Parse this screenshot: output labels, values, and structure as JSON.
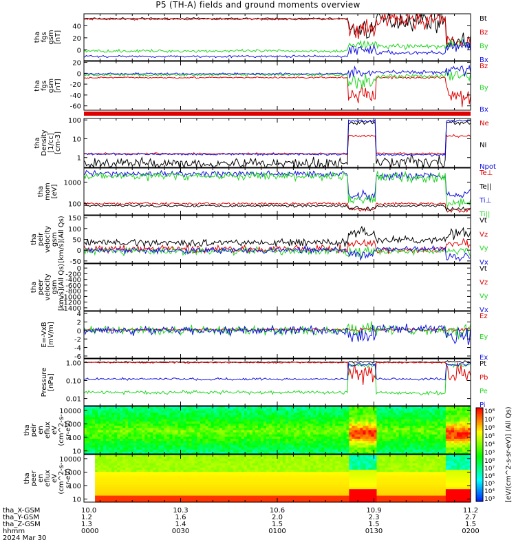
{
  "title": "P5 (TH-A) fields and ground moments overview",
  "colors": {
    "black": "#000000",
    "red": "#e00000",
    "green": "#22d622",
    "blue": "#1010e0",
    "frame": "#000000"
  },
  "chart_data": [
    {
      "type": "line",
      "ylabel": [
        "tha",
        "fgs",
        "gsm",
        "[nT]"
      ],
      "ylim": [
        -18,
        60
      ],
      "yticks": [
        "40",
        "20",
        "0"
      ],
      "ytick_values": [
        40,
        20,
        0
      ],
      "legend": [
        "Bt",
        "Bz",
        "By",
        "Bx"
      ],
      "series": [
        {
          "name": "Bt",
          "color": "black",
          "baseline": 52,
          "noise": 1.2,
          "disturbed": [
            [
              35,
              15
            ],
            [
              50,
              15
            ],
            [
              15,
              10
            ]
          ]
        },
        {
          "name": "Bz",
          "color": "red",
          "baseline": 51,
          "noise": 1.2,
          "disturbed": [
            [
              30,
              15
            ],
            [
              50,
              15
            ],
            [
              12,
              10
            ]
          ]
        },
        {
          "name": "By",
          "color": "green",
          "baseline": -2,
          "noise": 2,
          "disturbed": [
            [
              8,
              6
            ],
            [
              6,
              4
            ],
            [
              10,
              8
            ]
          ]
        },
        {
          "name": "Bx",
          "color": "blue",
          "baseline": -11,
          "noise": 1.5,
          "disturbed": [
            [
              0,
              8
            ],
            [
              -5,
              3
            ],
            [
              5,
              10
            ]
          ]
        }
      ]
    },
    {
      "type": "line",
      "ylabel": [
        "tha",
        "fgs",
        "gsm",
        "[nT]"
      ],
      "ylim": [
        -68,
        22
      ],
      "yticks": [
        "20",
        "0",
        "-20",
        "-40",
        "-60"
      ],
      "ytick_values": [
        20,
        0,
        -20,
        -40,
        -60
      ],
      "legend": [
        "Bz",
        "By",
        "Bx"
      ],
      "series": [
        {
          "name": "Bz",
          "color": "red",
          "baseline": -8,
          "noise": 1.2,
          "disturbed": [
            [
              -40,
              12
            ],
            [
              -8,
              2
            ],
            [
              -40,
              15
            ]
          ]
        },
        {
          "name": "By",
          "color": "green",
          "baseline": -3,
          "noise": 2,
          "disturbed": [
            [
              -15,
              12
            ],
            [
              -5,
              3
            ],
            [
              -5,
              10
            ]
          ]
        },
        {
          "name": "Bx",
          "color": "blue",
          "baseline": -1,
          "noise": 1.5,
          "disturbed": [
            [
              0,
              10
            ],
            [
              2,
              3
            ],
            [
              8,
              10
            ]
          ]
        }
      ]
    },
    {
      "type": "line",
      "ylabel": [
        "tha",
        "Density",
        "[1/cc]",
        "[cm-3]"
      ],
      "ylim": [
        0.3,
        120
      ],
      "log": true,
      "yticks": [
        "100",
        "10",
        "1"
      ],
      "ytick_values": [
        100,
        10,
        1
      ],
      "legend": [
        "Ne",
        "Ni",
        "Npot"
      ],
      "series": [
        {
          "name": "Ne",
          "color": "red",
          "baseline": 1.6,
          "noise": 0.04,
          "disturbed": [
            [
              14,
              0.05
            ],
            [
              1.6,
              0.05
            ],
            [
              14,
              0.05
            ]
          ]
        },
        {
          "name": "Ni",
          "color": "black",
          "baseline": 0.5,
          "noise": 0.25,
          "disturbed": [
            [
              70,
              0.1
            ],
            [
              0.6,
              0.3
            ],
            [
              70,
              0.1
            ]
          ]
        },
        {
          "name": "Npot",
          "color": "blue",
          "baseline": 1.5,
          "noise": 0.05,
          "disturbed": [
            [
              90,
              0.05
            ],
            [
              1.4,
              0.05
            ],
            [
              90,
              0.05
            ]
          ]
        }
      ]
    },
    {
      "type": "line",
      "ylabel": [
        "tha",
        "mom",
        "[eV]"
      ],
      "ylim": [
        30,
        4500
      ],
      "log": true,
      "yticks": [
        "1000",
        "100"
      ],
      "ytick_values": [
        1000,
        100
      ],
      "legend": [
        "Te⊥",
        "Te||",
        "Ti⊥",
        "Ti||"
      ],
      "series": [
        {
          "name": "Te⊥",
          "color": "red",
          "baseline": 100,
          "noise": 0.05,
          "disturbed": [
            [
              55,
              0.08
            ],
            [
              100,
              0.05
            ],
            [
              50,
              0.08
            ]
          ]
        },
        {
          "name": "Te||",
          "color": "black",
          "baseline": 80,
          "noise": 0.05,
          "disturbed": [
            [
              60,
              0.08
            ],
            [
              80,
              0.05
            ],
            [
              55,
              0.08
            ]
          ]
        },
        {
          "name": "Ti⊥",
          "color": "blue",
          "baseline": 2400,
          "noise": 0.12,
          "disturbed": [
            [
              250,
              0.2
            ],
            [
              2000,
              0.15
            ],
            [
              300,
              0.2
            ]
          ]
        },
        {
          "name": "Ti||",
          "color": "green",
          "baseline": 1900,
          "noise": 0.15,
          "disturbed": [
            [
              150,
              0.2
            ],
            [
              1700,
              0.2
            ],
            [
              100,
              0.2
            ]
          ]
        }
      ]
    },
    {
      "type": "line",
      "ylabel": [
        "tha",
        "peir",
        "velocity",
        "gsm",
        "[km/s](All Qs)"
      ],
      "ylim": [
        -60,
        160
      ],
      "yticks": [
        "150",
        "100",
        "50",
        "0",
        "-50"
      ],
      "ytick_values": [
        150,
        100,
        50,
        0,
        -50
      ],
      "legend": [
        "Vt",
        "Vz",
        "Vy",
        "Vx"
      ],
      "series": [
        {
          "name": "Vt",
          "color": "black",
          "baseline": 35,
          "noise": 14,
          "disturbed": [
            [
              80,
              25
            ],
            [
              45,
              15
            ],
            [
              80,
              25
            ]
          ]
        },
        {
          "name": "Vz",
          "color": "red",
          "baseline": 5,
          "noise": 14,
          "disturbed": [
            [
              30,
              15
            ],
            [
              0,
              12
            ],
            [
              30,
              15
            ]
          ]
        },
        {
          "name": "Vy",
          "color": "green",
          "baseline": -5,
          "noise": 14,
          "disturbed": [
            [
              -10,
              20
            ],
            [
              -5,
              12
            ],
            [
              -10,
              20
            ]
          ]
        },
        {
          "name": "Vx",
          "color": "blue",
          "baseline": 0,
          "noise": 12,
          "disturbed": [
            [
              -20,
              20
            ],
            [
              5,
              12
            ],
            [
              -30,
              20
            ]
          ]
        }
      ]
    },
    {
      "type": "line",
      "ylabel": [
        "tha",
        "peer",
        "velocity",
        "gsm",
        "[km/s](All Qs)"
      ],
      "ylim": [
        -1500,
        150
      ],
      "yticks": [
        "0",
        "-200",
        "-400",
        "-600",
        "-800",
        "-1000",
        "-1200",
        "-1400"
      ],
      "ytick_values": [
        0,
        -200,
        -400,
        -600,
        -800,
        -1000,
        -1200,
        -1400
      ],
      "legend": [
        "Vt",
        "Vz",
        "Vy",
        "Vx"
      ],
      "series": []
    },
    {
      "type": "line",
      "ylabel": [
        "E=-VxB",
        "[mV/m]"
      ],
      "ylim": [
        -6.5,
        4.5
      ],
      "yticks": [
        "4",
        "2",
        "0",
        "-2",
        "-4",
        "-6"
      ],
      "ytick_values": [
        4,
        2,
        0,
        -2,
        -4,
        -6
      ],
      "legend": [
        "Ez",
        "Ey",
        "Ex"
      ],
      "series": [
        {
          "name": "Ez",
          "color": "red",
          "baseline": 0.2,
          "noise": 0.25,
          "disturbed": [
            [
              0.2,
              0.4
            ],
            [
              0.2,
              0.25
            ],
            [
              0.2,
              0.4
            ]
          ]
        },
        {
          "name": "Ey",
          "color": "green",
          "baseline": 0,
          "noise": 0.9,
          "disturbed": [
            [
              0.5,
              1.5
            ],
            [
              0,
              0.9
            ],
            [
              0,
              1.5
            ]
          ]
        },
        {
          "name": "Ex",
          "color": "blue",
          "baseline": 0,
          "noise": 0.8,
          "disturbed": [
            [
              -1,
              1.8
            ],
            [
              0.5,
              0.9
            ],
            [
              -1,
              1.8
            ]
          ]
        }
      ]
    },
    {
      "type": "line",
      "ylabel": [
        "Pressure",
        "[nPa]"
      ],
      "ylim": [
        0.004,
        1.6
      ],
      "log": true,
      "yticks": [
        "1.00",
        "0.10",
        "0.01"
      ],
      "ytick_values": [
        1,
        0.1,
        0.01
      ],
      "legend": [
        "Pt",
        "Pb",
        "Pe",
        "Pi"
      ],
      "series": [
        {
          "name": "Pt",
          "color": "black",
          "baseline": 1.05,
          "noise": 0.03,
          "disturbed": [
            [
              1.1,
              0.05
            ],
            [
              1.05,
              0.03
            ],
            [
              1.1,
              0.05
            ]
          ]
        },
        {
          "name": "Pb",
          "color": "red",
          "baseline": 1.0,
          "noise": 0.03,
          "disturbed": [
            [
              0.25,
              0.5
            ],
            [
              1.0,
              0.03
            ],
            [
              0.25,
              0.5
            ]
          ]
        },
        {
          "name": "Pe",
          "color": "green",
          "baseline": 0.022,
          "noise": 0.08,
          "disturbed": [
            [
              0.7,
              0.1
            ],
            [
              0.02,
              0.08
            ],
            [
              0.7,
              0.1
            ]
          ]
        },
        {
          "name": "Pi",
          "color": "blue",
          "baseline": 0.12,
          "noise": 0.06,
          "disturbed": [
            [
              0.8,
              0.08
            ],
            [
              0.12,
              0.06
            ],
            [
              0.8,
              0.08
            ]
          ]
        }
      ]
    },
    {
      "type": "heatmap",
      "ylabel": [
        "tha",
        "peir",
        "en",
        "eflux",
        "eV",
        "(cm^2-s-",
        "sr-eV)"
      ],
      "ylim": [
        6,
        20000
      ],
      "log": true,
      "yticks": [
        "10000",
        "1000",
        "100",
        "10"
      ],
      "ytick_values": [
        10000,
        1000,
        100,
        10
      ]
    },
    {
      "type": "heatmap",
      "ylabel": [
        "tha",
        "peer",
        "en",
        "eflux",
        "eV",
        "(cm^2-s-",
        "sr-eV)"
      ],
      "ylim": [
        6,
        20000
      ],
      "log": true,
      "yticks": [
        "10000",
        "1000",
        "100",
        "10"
      ],
      "ytick_values": [
        10000,
        1000,
        100,
        10
      ]
    }
  ],
  "events": [
    [
      0.684,
      0.756
    ],
    [
      0.935,
      1.0
    ]
  ],
  "colorbar": {
    "label": "[eV/(cm^2-s-sr-eV)] (All Qs)",
    "ticks": [
      "10⁸",
      "10⁷",
      "10⁶",
      "10⁵",
      "10⁴",
      "10³"
    ],
    "ticks2": [
      "10⁸",
      "10⁷",
      "10⁶",
      "10⁵",
      "10⁴",
      "10³"
    ]
  },
  "x_axis": {
    "row_labels": [
      "tha_X-GSM",
      "tha_Y-GSM",
      "tha_Z-GSM",
      "hhmm",
      "2024 Mar 30"
    ],
    "columns": [
      {
        "x": "10.0",
        "y": "1.2",
        "z": "1.3",
        "t": "0000",
        "frac": 0.0
      },
      {
        "x": "10.3",
        "y": "1.6",
        "z": "1.4",
        "t": "0030",
        "frac": 0.25
      },
      {
        "x": "10.6",
        "y": "2.0",
        "z": "1.5",
        "t": "0100",
        "frac": 0.5
      },
      {
        "x": "10.9",
        "y": "2.3",
        "z": "1.5",
        "t": "0130",
        "frac": 0.75
      },
      {
        "x": "11.2",
        "y": "2.7",
        "z": "1.5",
        "t": "0200",
        "frac": 1.0
      }
    ]
  }
}
